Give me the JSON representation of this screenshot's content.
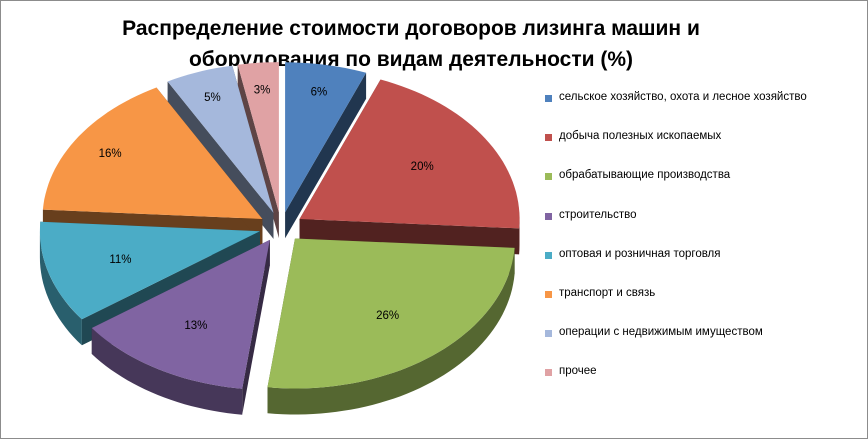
{
  "chart_data": {
    "type": "pie",
    "title": "Распределение стоимости договоров лизинга машин и оборудования по видам деятельности (%)",
    "style": "exploded 3d pie",
    "legend_position": "right",
    "categories": [
      "сельское хозяйство, охота и лесное хозяйство",
      "добыча полезных ископаемых",
      "обрабатывающие производства",
      "строительство",
      "оптовая и розничная торговля",
      "транспорт и связь",
      "операции с недвижимым  имуществом",
      "прочее"
    ],
    "values": [
      6,
      20,
      26,
      13,
      11,
      16,
      5,
      3
    ],
    "labels": [
      "6%",
      "20%",
      "26%",
      "13%",
      "11%",
      "16%",
      "5%",
      "3%"
    ],
    "colors": [
      "#4F81BD",
      "#C0504D",
      "#9BBB59",
      "#8064A2",
      "#4BACC6",
      "#F79646",
      "#A5B8DC",
      "#E0A2A4"
    ]
  }
}
